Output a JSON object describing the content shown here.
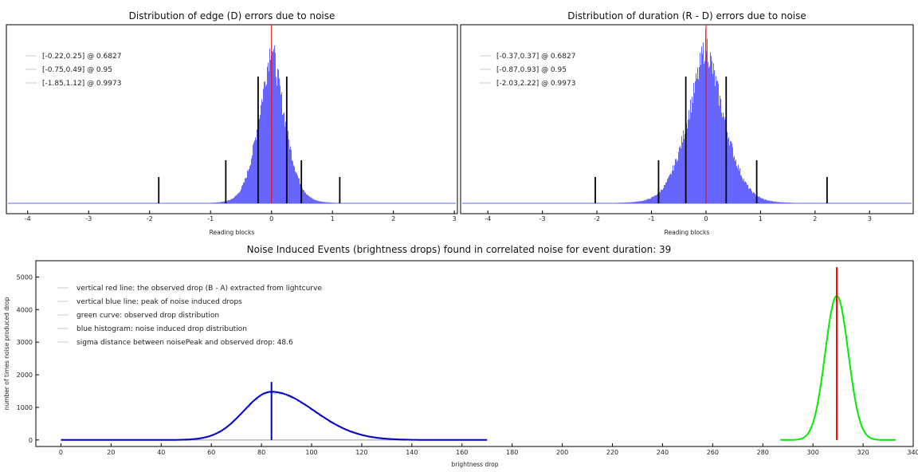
{
  "chart_data": [
    {
      "type": "bar",
      "title": "Distribution of edge (D) errors due to noise",
      "xlabel": "Reading blocks",
      "ylabel": "",
      "xlim": [
        -4.35,
        3.05
      ],
      "x_ticks": [
        -4,
        -3,
        -2,
        -1,
        0,
        1,
        2,
        3
      ],
      "grid": false,
      "legend_position": "top-left",
      "histogram": {
        "center": 0.0,
        "sigma_left": 0.23,
        "sigma_right": 0.24,
        "color": "#6666ff"
      },
      "observed_line": {
        "x": 0.0,
        "color": "#ff0000"
      },
      "legend": [
        "[-0.22,0.25] @ 0.6827",
        "[-0.75,0.49] @ 0.95",
        "[-1.85,1.12] @ 0.9973"
      ],
      "interval_markers": [
        {
          "x": -0.22,
          "level": "high"
        },
        {
          "x": 0.25,
          "level": "high"
        },
        {
          "x": -0.75,
          "level": "mid"
        },
        {
          "x": 0.49,
          "level": "mid"
        },
        {
          "x": -1.85,
          "level": "low"
        },
        {
          "x": 1.12,
          "level": "low"
        }
      ]
    },
    {
      "type": "bar",
      "title": "Distribution of duration (R - D) errors due to noise",
      "xlabel": "Reading blocks",
      "ylabel": "",
      "xlim": [
        -4.5,
        3.8
      ],
      "x_ticks": [
        -4,
        -3,
        -2,
        -1,
        0,
        1,
        2,
        3
      ],
      "grid": false,
      "legend_position": "top-left",
      "histogram": {
        "center": 0.0,
        "sigma_left": 0.37,
        "sigma_right": 0.37,
        "color": "#6666ff"
      },
      "observed_line": {
        "x": 0.0,
        "color": "#ff0000"
      },
      "legend": [
        "[-0.37,0.37] @ 0.6827",
        "[-0.87,0.93] @ 0.95",
        "[-2.03,2.22] @ 0.9973"
      ],
      "interval_markers": [
        {
          "x": -0.37,
          "level": "high"
        },
        {
          "x": 0.37,
          "level": "high"
        },
        {
          "x": -0.87,
          "level": "mid"
        },
        {
          "x": 0.93,
          "level": "mid"
        },
        {
          "x": -2.03,
          "level": "low"
        },
        {
          "x": 2.22,
          "level": "low"
        }
      ]
    },
    {
      "type": "line",
      "title": "Noise Induced Events (brightness drops) found in correlated noise for event duration: 39",
      "xlabel": "brightness drop",
      "ylabel": "number of times noise produced drop",
      "xlim": [
        -10,
        340
      ],
      "ylim": [
        -200,
        5500
      ],
      "x_ticks": [
        0,
        20,
        40,
        60,
        80,
        100,
        120,
        140,
        160,
        180,
        200,
        220,
        240,
        260,
        280,
        300,
        320,
        340
      ],
      "y_ticks": [
        0,
        1000,
        2000,
        3000,
        4000,
        5000
      ],
      "grid": false,
      "legend_position": "top-left",
      "legend": [
        "vertical red line: the observed drop (B - A) extracted from lightcurve",
        "vertical blue line: peak of noise induced drops",
        "green curve: observed drop distribution",
        "blue histogram: noise induced drop distribution",
        "sigma distance between noisePeak and observed drop: 48.6"
      ],
      "series": [
        {
          "name": "blue histogram: noise induced drop distribution",
          "color": "#0000cc",
          "peak_x": 84,
          "peak_y": 1480,
          "sigma_left": 11,
          "sigma_right": 17,
          "x_range": [
            0,
            170
          ]
        },
        {
          "name": "green curve: observed drop distribution",
          "color": "#00ee00",
          "peak_x": 309.5,
          "peak_y": 4420,
          "sigma_left": 4.6,
          "sigma_right": 4.6,
          "x_range": [
            287,
            333
          ]
        }
      ],
      "observed_drop_line": {
        "x": 309.5,
        "y_top": 5300,
        "color": "#ff0000"
      },
      "noise_peak_line": {
        "x": 84,
        "y_top": 1780,
        "color": "#0000cc"
      }
    }
  ]
}
